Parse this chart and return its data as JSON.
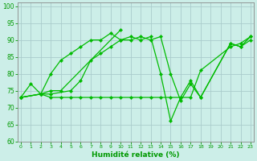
{
  "background_color": "#cceee8",
  "grid_color": "#aacccc",
  "line_color": "#00bb00",
  "xlabel": "Humidité relative (%)",
  "xlabel_color": "#009900",
  "tick_color": "#009900",
  "ylim": [
    60,
    101
  ],
  "xlim": [
    -0.3,
    23.3
  ],
  "yticks": [
    60,
    65,
    70,
    75,
    80,
    85,
    90,
    95,
    100
  ],
  "xticks": [
    0,
    1,
    2,
    3,
    4,
    5,
    6,
    7,
    8,
    9,
    10,
    11,
    12,
    13,
    14,
    15,
    16,
    17,
    18,
    19,
    20,
    21,
    22,
    23
  ],
  "series": [
    {
      "x": [
        0,
        1,
        2,
        3,
        4,
        5,
        6,
        7,
        8,
        9,
        10,
        11,
        12,
        13,
        14,
        15,
        16,
        17,
        18,
        21,
        22,
        23
      ],
      "y": [
        73,
        77,
        74,
        80,
        84,
        86,
        88,
        90,
        90,
        92,
        90,
        91,
        90,
        91,
        80,
        66,
        73,
        78,
        73,
        89,
        88,
        91
      ]
    },
    {
      "x": [
        0,
        2,
        3,
        4,
        10
      ],
      "y": [
        73,
        74,
        75,
        75,
        93
      ]
    },
    {
      "x": [
        0,
        2,
        3,
        4,
        5,
        6,
        7,
        8,
        9,
        10,
        11,
        12,
        13,
        14,
        15,
        16,
        17,
        18,
        21,
        22,
        23
      ],
      "y": [
        73,
        74,
        73,
        73,
        73,
        73,
        73,
        73,
        73,
        73,
        73,
        73,
        73,
        73,
        73,
        73,
        73,
        81,
        88,
        89,
        91
      ]
    },
    {
      "x": [
        0,
        2,
        3,
        5,
        6,
        7,
        8,
        9,
        10,
        11,
        12,
        13,
        14,
        15,
        16,
        17,
        18,
        21,
        22,
        23
      ],
      "y": [
        73,
        74,
        74,
        75,
        78,
        84,
        86,
        88,
        90,
        90,
        91,
        90,
        91,
        80,
        72,
        77,
        73,
        89,
        88,
        90
      ]
    }
  ]
}
